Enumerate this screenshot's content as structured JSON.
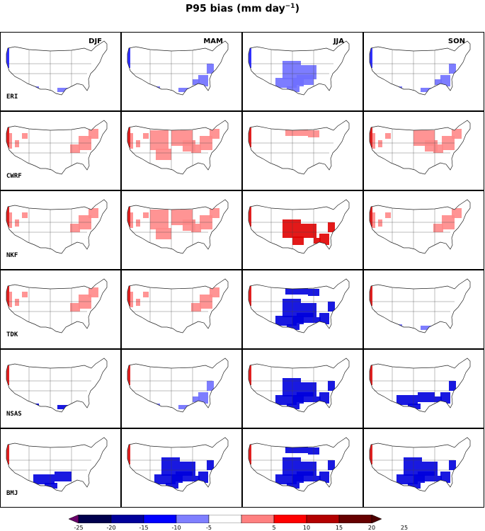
{
  "title": "P95 bias (mm day",
  "title_exp": "−1",
  "title_close": ")",
  "seasons": [
    "DJF",
    "MAM",
    "JJA",
    "SON"
  ],
  "models": [
    "ERI",
    "CWRF",
    "NKF",
    "TDK",
    "NSAS",
    "BMJ"
  ],
  "colorbar": {
    "ticks": [
      "-25",
      "-20",
      "-15",
      "-10",
      "-5",
      "5",
      "10",
      "15",
      "20",
      "25"
    ],
    "colors": [
      "#6a006a",
      "#00004d",
      "#00009a",
      "#0000ff",
      "#7f7fff",
      "#ffffff",
      "#ff8080",
      "#ff0000",
      "#b30000",
      "#660000",
      "#4d0000"
    ]
  },
  "patterns": [
    [
      {
        "level": -1,
        "regions": [
          "gulf"
        ]
      },
      {
        "level": -1,
        "regions": [
          "gulf",
          "southeast"
        ]
      },
      {
        "level": -1,
        "regions": [
          "central",
          "south"
        ]
      },
      {
        "level": -1,
        "regions": [
          "southeast",
          "gulf"
        ]
      }
    ],
    [
      {
        "level": 1,
        "regions": [
          "west",
          "east"
        ]
      },
      {
        "level": 1,
        "regions": [
          "plains",
          "midwest",
          "east",
          "west"
        ]
      },
      {
        "level": 1,
        "regions": [
          "north"
        ]
      },
      {
        "level": 1,
        "regions": [
          "midwest",
          "east",
          "west"
        ]
      }
    ],
    [
      {
        "level": 1,
        "regions": [
          "east",
          "west"
        ]
      },
      {
        "level": 1,
        "regions": [
          "plains",
          "midwest",
          "east",
          "west"
        ]
      },
      {
        "level": 2,
        "regions": [
          "southeast",
          "central"
        ]
      },
      {
        "level": 1,
        "regions": [
          "east",
          "west"
        ]
      }
    ],
    [
      {
        "level": 1,
        "regions": [
          "east",
          "west"
        ]
      },
      {
        "level": 1,
        "regions": [
          "east",
          "west"
        ]
      },
      {
        "level": -2,
        "regions": [
          "central",
          "south",
          "southeast",
          "north"
        ]
      },
      {
        "level": -1,
        "regions": [
          "gulf"
        ]
      }
    ],
    [
      {
        "level": -2,
        "regions": [
          "gulf"
        ]
      },
      {
        "level": -1,
        "regions": [
          "gulf",
          "southeast"
        ]
      },
      {
        "level": -2,
        "regions": [
          "central",
          "southeast",
          "south"
        ]
      },
      {
        "level": -2,
        "regions": [
          "south",
          "southeast"
        ]
      }
    ],
    [
      {
        "level": -2,
        "regions": [
          "south"
        ]
      },
      {
        "level": -2,
        "regions": [
          "central",
          "south",
          "southeast"
        ]
      },
      {
        "level": -2,
        "regions": [
          "central",
          "south",
          "southeast",
          "north"
        ]
      },
      {
        "level": -2,
        "regions": [
          "central",
          "south",
          "southeast"
        ]
      }
    ]
  ]
}
